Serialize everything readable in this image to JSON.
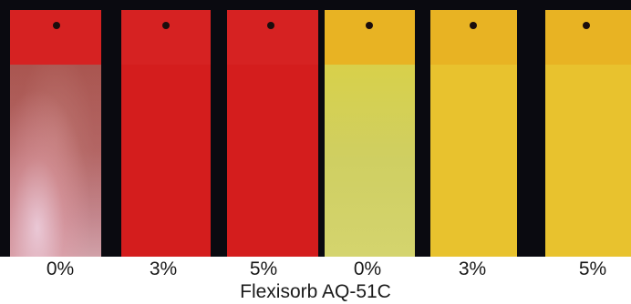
{
  "panels": [
    {
      "label": "0%",
      "group": "red",
      "faded": true
    },
    {
      "label": "3%",
      "group": "red",
      "faded": false
    },
    {
      "label": "5%",
      "group": "red",
      "faded": false
    },
    {
      "label": "0%",
      "group": "yellow",
      "faded": true
    },
    {
      "label": "3%",
      "group": "yellow",
      "faded": false
    },
    {
      "label": "5%",
      "group": "yellow",
      "faded": false
    }
  ],
  "caption": "Flexisorb AQ-51C",
  "colors": {
    "red_panel": "#d41d1d",
    "yellow_panel": "#e8c22e",
    "background": "#0a0a10"
  }
}
